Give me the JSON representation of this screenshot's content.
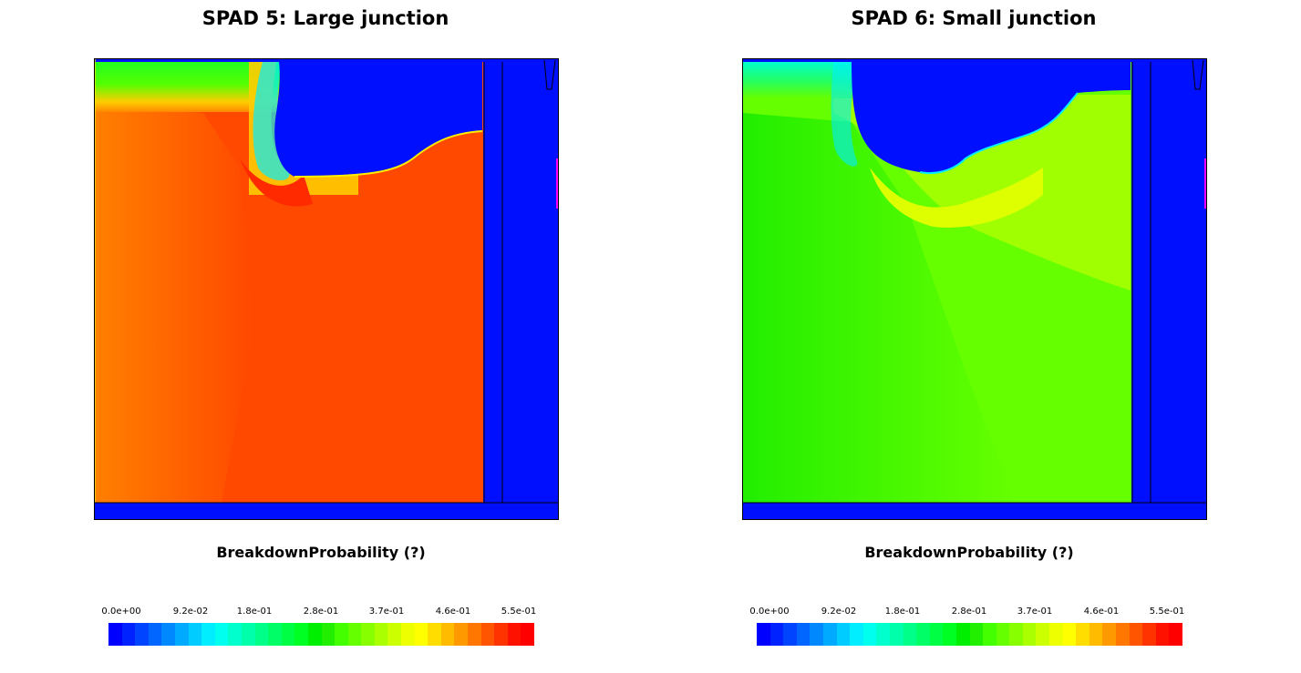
{
  "panels": [
    {
      "title": "SPAD 5: Large junction",
      "quantity_label": "BreakdownProbability (?)",
      "fill_colors": {
        "edge_band": "#ff9a00",
        "body_left": "#ff8000",
        "body_main": "#ff4800",
        "hot_spot": "#ff2a00"
      },
      "colorbar": {
        "tick_labels": [
          "0.0e+00",
          "9.2e-02",
          "1.8e-01",
          "2.8e-01",
          "3.7e-01",
          "4.6e-01",
          "5.5e-01"
        ]
      }
    },
    {
      "title": "SPAD 6: Small junction",
      "quantity_label": "BreakdownProbability (?)",
      "fill_colors": {
        "edge_band": "#aaff00",
        "body_left": "#22ee00",
        "body_main": "#66ff00",
        "hot_spot": "#ddff00"
      },
      "colorbar": {
        "tick_labels": [
          "0.0e+00",
          "9.2e-02",
          "1.8e-01",
          "2.8e-01",
          "3.7e-01",
          "4.6e-01",
          "5.5e-01"
        ]
      }
    }
  ],
  "colormap": [
    "#0000ff",
    "#0022ff",
    "#0044ff",
    "#0066ff",
    "#0088ff",
    "#00aaff",
    "#00ccff",
    "#00eeff",
    "#00ffee",
    "#00ffcc",
    "#00ffaa",
    "#00ff88",
    "#00ff66",
    "#00ff44",
    "#00ff22",
    "#00ee00",
    "#22ee00",
    "#44ff00",
    "#66ff00",
    "#88ff00",
    "#aaff00",
    "#ccff00",
    "#eeff00",
    "#ffff00",
    "#ffdd00",
    "#ffbb00",
    "#ff9900",
    "#ff7700",
    "#ff5500",
    "#ff3300",
    "#ff1100",
    "#ff0000"
  ],
  "colors": {
    "substrate": "#0010ff",
    "contact": "#ff00ff",
    "outline": "#000000"
  }
}
